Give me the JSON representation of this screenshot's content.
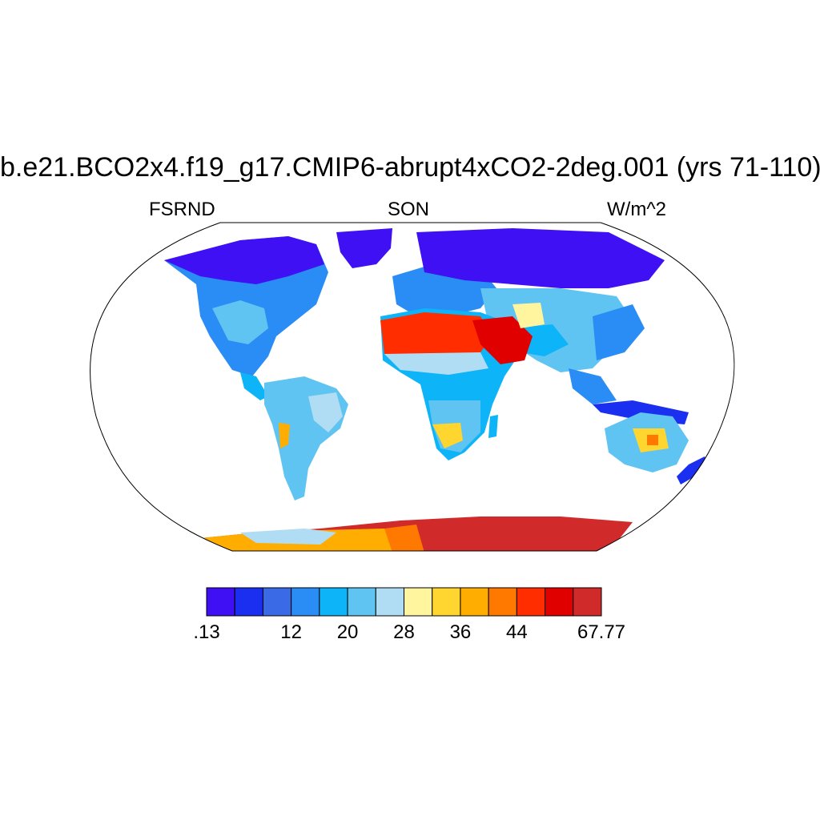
{
  "title": "b.e21.BCO2x4.f19_g17.CMIP6-abrupt4xCO2-2deg.001 (yrs 71-110)",
  "left_label": "FSRND",
  "center_label": "SON",
  "right_label": "W/m^2",
  "colorbar": {
    "colors": [
      "#4010f4",
      "#1a2ff0",
      "#3a6ae6",
      "#2a8cf5",
      "#0db4f7",
      "#60c4f2",
      "#b1ddf4",
      "#fff59e",
      "#ffd530",
      "#ffad00",
      "#ff7800",
      "#ff2d00",
      "#e00000",
      "#d12a2a"
    ],
    "labels": [
      ".13",
      "12",
      "20",
      "28",
      "36",
      "44",
      "67.77"
    ],
    "label_box_index": [
      0,
      3,
      5,
      7,
      9,
      11,
      14
    ]
  },
  "regions": {
    "arctic_landmasses": "#4010f4",
    "north_america_low": "#2a8cf5",
    "tropics": "#60c4f2",
    "sahara": "#ff2d00",
    "arabia": "#e00000",
    "antarctica_east": "#d12a2a",
    "antarctica_west": "#ffad00",
    "australia_center": "#ffd530"
  }
}
